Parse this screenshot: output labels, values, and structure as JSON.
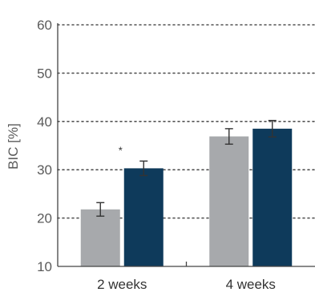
{
  "chart_data": {
    "type": "bar",
    "categories": [
      "2 weeks",
      "4 weeks"
    ],
    "series": [
      {
        "color": "#a7a9ac",
        "values": [
          21.8,
          36.9
        ],
        "errors": [
          1.4,
          1.6
        ]
      },
      {
        "color": "#0e3a5b",
        "values": [
          30.3,
          38.5
        ],
        "errors": [
          1.5,
          1.7
        ]
      }
    ],
    "ylabel": "BIC [%]",
    "ylim": [
      10,
      60
    ],
    "yticks": [
      10,
      20,
      30,
      40,
      50,
      60
    ],
    "grid": true,
    "annotations": [
      {
        "text": "*",
        "category": 0,
        "series": 1
      }
    ]
  }
}
